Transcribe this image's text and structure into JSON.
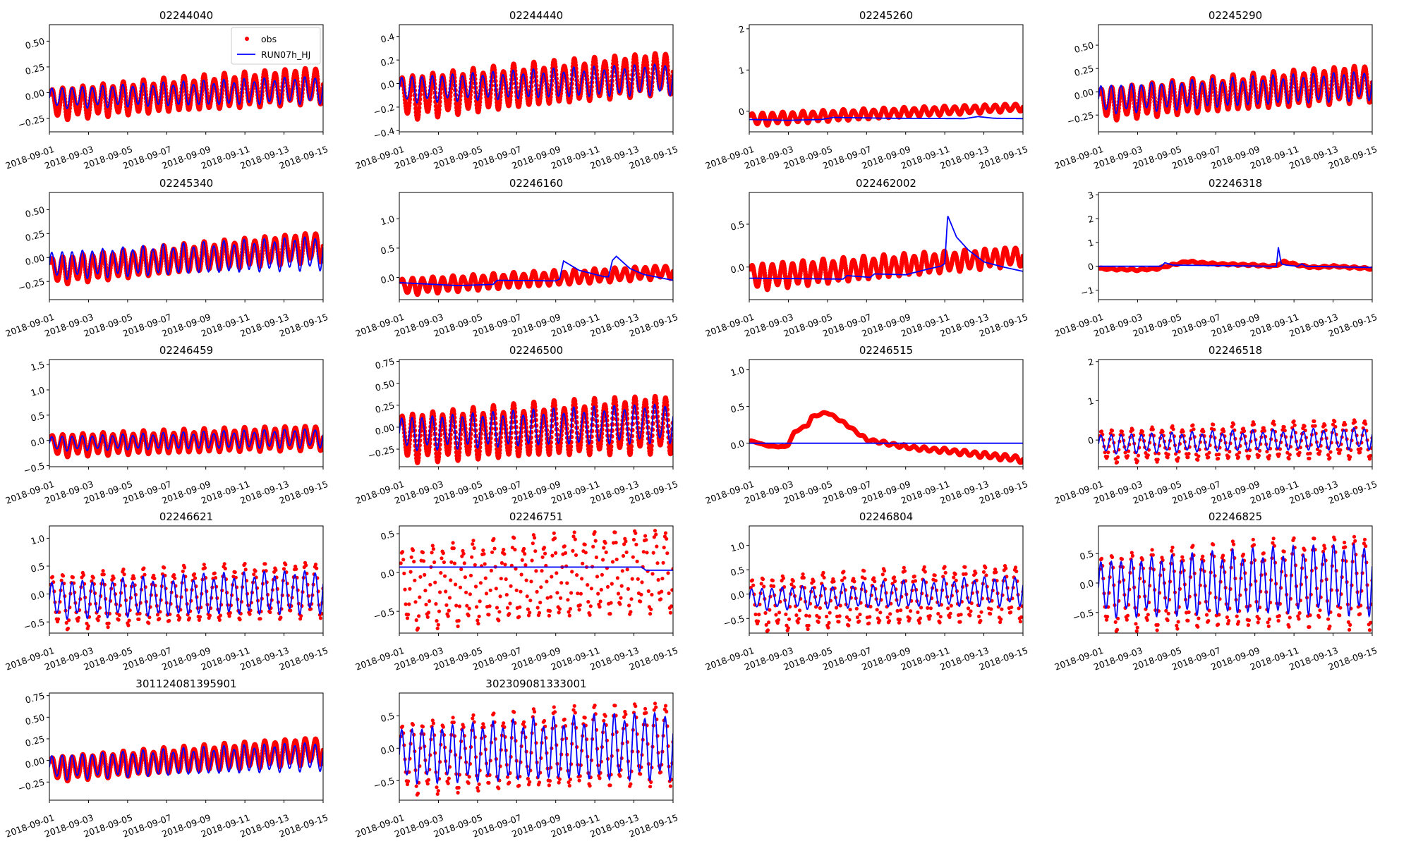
{
  "chart_data": {
    "type": "scatter+line",
    "layout": {
      "rows": 5,
      "cols": 4
    },
    "legend": {
      "placement": "top-right",
      "panel": 0,
      "entries": [
        {
          "name": "obs",
          "marker": "dot",
          "color": "#ff0000"
        },
        {
          "name": "RUN07h_HJ",
          "marker": "line",
          "color": "#0000ff"
        }
      ]
    },
    "xlim": [
      "2018-09-01",
      "2018-09-15"
    ],
    "xticks": [
      "2018-09-01",
      "2018-09-03",
      "2018-09-05",
      "2018-09-07",
      "2018-09-09",
      "2018-09-11",
      "2018-09-13",
      "2018-09-15"
    ],
    "series_description": "obs = red dots (observed water level), RUN07h_HJ = blue line (model), tidal oscillation ~2 cycles/day",
    "panels": [
      {
        "title": "02244040",
        "ylim": [
          -0.38,
          0.66
        ],
        "yticks": [
          -0.25,
          0,
          0.25,
          0.5
        ],
        "ytick_labels": [
          "−0.25",
          "0.00",
          "0.25",
          "0.50"
        ],
        "obs": {
          "start_mean": -0.11,
          "end_mean": 0.08,
          "start_amp": 0.14,
          "end_amp": 0.16
        },
        "model": {
          "start_mean": -0.05,
          "end_mean": 0.03,
          "start_amp": 0.09,
          "end_amp": 0.12
        }
      },
      {
        "title": "02244440",
        "ylim": [
          -0.41,
          0.5
        ],
        "yticks": [
          -0.4,
          -0.2,
          0,
          0.2,
          0.4
        ],
        "ytick_labels": [
          "−0.4",
          "−0.2",
          "0.0",
          "0.2",
          "0.4"
        ],
        "obs": {
          "start_mean": -0.12,
          "end_mean": 0.1,
          "start_amp": 0.17,
          "end_amp": 0.16
        },
        "model": {
          "start_mean": -0.05,
          "end_mean": 0.04,
          "start_amp": 0.1,
          "end_amp": 0.12
        }
      },
      {
        "title": "02245260",
        "ylim": [
          -0.5,
          2.1
        ],
        "yticks": [
          0,
          1,
          2
        ],
        "ytick_labels": [
          "0",
          "1",
          "2"
        ],
        "obs": {
          "start_mean": -0.2,
          "end_mean": 0.1,
          "start_amp": 0.14,
          "end_amp": 0.08
        },
        "model": {
          "start_mean": -0.2,
          "end_mean": -0.19,
          "start_amp": 0.0,
          "end_amp": 0.0,
          "profile": [
            [
              0,
              -0.2
            ],
            [
              2,
              -0.22
            ],
            [
              3.7,
              -0.2
            ],
            [
              4.3,
              -0.15
            ],
            [
              7,
              -0.17
            ],
            [
              11,
              -0.18
            ],
            [
              11.7,
              -0.13
            ],
            [
              12.5,
              -0.17
            ],
            [
              14,
              -0.18
            ]
          ]
        }
      },
      {
        "title": "02245290",
        "ylim": [
          -0.43,
          0.72
        ],
        "yticks": [
          -0.25,
          0,
          0.25,
          0.5
        ],
        "ytick_labels": [
          "−0.25",
          "0.00",
          "0.25",
          "0.50"
        ],
        "obs": {
          "start_mean": -0.13,
          "end_mean": 0.1,
          "start_amp": 0.16,
          "end_amp": 0.18
        },
        "model": {
          "start_mean": -0.08,
          "end_mean": 0.07,
          "start_amp": 0.14,
          "end_amp": 0.14
        }
      },
      {
        "title": "02245340",
        "ylim": [
          -0.44,
          0.68
        ],
        "yticks": [
          -0.25,
          0,
          0.25,
          0.5
        ],
        "ytick_labels": [
          "−0.25",
          "0.00",
          "0.25",
          "0.50"
        ],
        "obs": {
          "start_mean": -0.14,
          "end_mean": 0.12,
          "start_amp": 0.13,
          "end_amp": 0.14
        },
        "model": {
          "start_mean": -0.08,
          "end_mean": 0.05,
          "start_amp": 0.13,
          "end_amp": 0.16
        }
      },
      {
        "title": "02246160",
        "ylim": [
          -0.38,
          1.45
        ],
        "yticks": [
          0,
          0.5,
          1.0
        ],
        "ytick_labels": [
          "0.0",
          "0.5",
          "1.0"
        ],
        "obs": {
          "start_mean": -0.16,
          "end_mean": 0.1,
          "start_amp": 0.13,
          "end_amp": 0.1
        },
        "model": {
          "start_mean": -0.09,
          "end_mean": -0.05,
          "start_amp": 0.0,
          "end_amp": 0.0,
          "profile": [
            [
              0,
              -0.09
            ],
            [
              3,
              -0.14
            ],
            [
              4.8,
              -0.12
            ],
            [
              5,
              -0.05
            ],
            [
              8,
              -0.06
            ],
            [
              8.2,
              -0.03
            ],
            [
              8.4,
              0.28
            ],
            [
              9.2,
              0.12
            ],
            [
              10.5,
              0.01
            ],
            [
              10.7,
              0.01
            ],
            [
              10.9,
              0.29
            ],
            [
              11.1,
              0.36
            ],
            [
              11.8,
              0.15
            ],
            [
              12.5,
              0.05
            ],
            [
              14,
              -0.05
            ]
          ]
        }
      },
      {
        "title": "022462002",
        "ylim": [
          -0.38,
          0.87
        ],
        "yticks": [
          0,
          0.5
        ],
        "ytick_labels": [
          "0.0",
          "0.5"
        ],
        "obs": {
          "start_mean": -0.12,
          "end_mean": 0.13,
          "start_amp": 0.14,
          "end_amp": 0.1
        },
        "model": {
          "start_mean": -0.13,
          "end_mean": -0.05,
          "start_amp": 0.0,
          "end_amp": 0.0,
          "profile": [
            [
              0,
              -0.13
            ],
            [
              4.8,
              -0.14
            ],
            [
              5,
              -0.1
            ],
            [
              6.2,
              -0.12
            ],
            [
              6.4,
              -0.08
            ],
            [
              8,
              -0.09
            ],
            [
              9.2,
              -0.02
            ],
            [
              9.8,
              0.01
            ],
            [
              10,
              0.04
            ],
            [
              10.15,
              0.6
            ],
            [
              10.6,
              0.35
            ],
            [
              11.2,
              0.2
            ],
            [
              12,
              0.06
            ],
            [
              13,
              0.0
            ],
            [
              14,
              -0.05
            ]
          ]
        }
      },
      {
        "title": "02246318",
        "ylim": [
          -1.4,
          3.1
        ],
        "yticks": [
          -1,
          0,
          1,
          2,
          3
        ],
        "ytick_labels": [
          "−1",
          "0",
          "1",
          "2",
          "3"
        ],
        "obs": {
          "start_mean": -0.1,
          "end_mean": -0.1,
          "start_amp": 0.03,
          "end_amp": 0.03,
          "profile": [
            [
              0,
              -0.1
            ],
            [
              2,
              -0.15
            ],
            [
              3,
              -0.1
            ],
            [
              4.5,
              0.2
            ],
            [
              6,
              0.1
            ],
            [
              8,
              0.05
            ],
            [
              9,
              0.0
            ],
            [
              9.5,
              0.2
            ],
            [
              10.2,
              0.05
            ],
            [
              11,
              -0.05
            ],
            [
              12,
              0.0
            ],
            [
              14,
              -0.1
            ]
          ]
        },
        "model": {
          "start_mean": 0.0,
          "end_mean": -0.05,
          "start_amp": 0.0,
          "end_amp": 0.0,
          "profile": [
            [
              0,
              0
            ],
            [
              3.2,
              0
            ],
            [
              3.4,
              0.15
            ],
            [
              3.8,
              0.05
            ],
            [
              9.1,
              0.0
            ],
            [
              9.2,
              0.8
            ],
            [
              9.35,
              0.1
            ],
            [
              9.6,
              0.05
            ],
            [
              10.2,
              0.0
            ],
            [
              10.4,
              0.1
            ],
            [
              10.6,
              0.0
            ],
            [
              14,
              -0.05
            ]
          ]
        }
      },
      {
        "title": "02246459",
        "ylim": [
          -0.52,
          1.6
        ],
        "yticks": [
          -0.5,
          0,
          0.5,
          1.0,
          1.5
        ],
        "ytick_labels": [
          "−0.5",
          "0.0",
          "0.5",
          "1.0",
          "1.5"
        ],
        "obs": {
          "start_mean": -0.1,
          "end_mean": 0.06,
          "start_amp": 0.2,
          "end_amp": 0.22
        },
        "model": {
          "start_mean": -0.06,
          "end_mean": 0.05,
          "start_amp": 0.13,
          "end_amp": 0.17
        }
      },
      {
        "title": "02246500",
        "ylim": [
          -0.45,
          0.77
        ],
        "yticks": [
          -0.25,
          0,
          0.25,
          0.5,
          0.75
        ],
        "ytick_labels": [
          "−0.25",
          "0.00",
          "0.25",
          "0.50",
          "0.75"
        ],
        "obs": {
          "start_mean": -0.12,
          "end_mean": 0.05,
          "start_amp": 0.25,
          "end_amp": 0.3
        },
        "model": {
          "start_mean": -0.07,
          "end_mean": 0.05,
          "start_amp": 0.17,
          "end_amp": 0.2
        }
      },
      {
        "title": "02246515",
        "ylim": [
          -0.32,
          1.14
        ],
        "yticks": [
          0,
          0.5,
          1.0
        ],
        "ytick_labels": [
          "0.0",
          "0.5",
          "1.0"
        ],
        "obs": {
          "start_mean": 0.04,
          "end_mean": -0.2,
          "start_amp": 0.0,
          "end_amp": 0.04,
          "profile": [
            [
              0,
              0.04
            ],
            [
              1,
              -0.04
            ],
            [
              1.8,
              -0.05
            ],
            [
              2,
              -0.02
            ],
            [
              2.3,
              0.15
            ],
            [
              3,
              0.25
            ],
            [
              3.2,
              0.36
            ],
            [
              4,
              0.42
            ],
            [
              5,
              0.25
            ],
            [
              6,
              0.05
            ],
            [
              7,
              0.0
            ],
            [
              8,
              -0.05
            ],
            [
              9,
              -0.08
            ],
            [
              10,
              -0.1
            ],
            [
              11,
              -0.13
            ],
            [
              12,
              -0.16
            ],
            [
              13,
              -0.19
            ],
            [
              14,
              -0.22
            ]
          ]
        },
        "model": {
          "start_mean": 0.0,
          "end_mean": 0.0,
          "start_amp": 0.0,
          "end_amp": 0.0
        }
      },
      {
        "title": "02246518",
        "ylim": [
          -0.68,
          2.05
        ],
        "yticks": [
          0,
          1,
          2
        ],
        "ytick_labels": [
          "0",
          "1",
          "2"
        ],
        "obs": {
          "start_mean": -0.15,
          "end_mean": 0.05,
          "start_amp": 0.38,
          "end_amp": 0.45
        },
        "model": {
          "start_mean": -0.1,
          "end_mean": 0.05,
          "start_amp": 0.22,
          "end_amp": 0.25
        }
      },
      {
        "title": "02246621",
        "ylim": [
          -0.7,
          1.22
        ],
        "yticks": [
          -0.5,
          0,
          0.5,
          1.0
        ],
        "ytick_labels": [
          "−0.5",
          "0.0",
          "0.5",
          "1.0"
        ],
        "obs": {
          "start_mean": -0.13,
          "end_mean": 0.1,
          "start_amp": 0.45,
          "end_amp": 0.45
        },
        "model": {
          "start_mean": -0.1,
          "end_mean": 0.05,
          "start_amp": 0.3,
          "end_amp": 0.35
        }
      },
      {
        "title": "02246751",
        "ylim": [
          -0.78,
          0.6
        ],
        "yticks": [
          -0.5,
          0,
          0.5
        ],
        "ytick_labels": [
          "−0.5",
          "0.0",
          "0.5"
        ],
        "obs": {
          "start_mean": -0.2,
          "end_mean": 0.05,
          "start_amp": 0.48,
          "end_amp": 0.48
        },
        "model": {
          "start_mean": 0.07,
          "end_mean": 0.03,
          "start_amp": 0.0,
          "end_amp": 0.0,
          "profile": [
            [
              0,
              0.07
            ],
            [
              12.4,
              0.07
            ],
            [
              12.6,
              0.03
            ],
            [
              14,
              0.03
            ]
          ]
        }
      },
      {
        "title": "02246804",
        "ylim": [
          -0.8,
          1.4
        ],
        "yticks": [
          -0.5,
          0,
          0.5,
          1.0
        ],
        "ytick_labels": [
          "−0.5",
          "0.0",
          "0.5",
          "1.0"
        ],
        "obs": {
          "start_mean": -0.2,
          "end_mean": 0.05,
          "start_amp": 0.5,
          "end_amp": 0.52
        },
        "model": {
          "start_mean": -0.1,
          "end_mean": 0.08,
          "start_amp": 0.2,
          "end_amp": 0.28
        }
      },
      {
        "title": "02246825",
        "ylim": [
          -0.85,
          0.97
        ],
        "yticks": [
          -0.5,
          0,
          0.5
        ],
        "ytick_labels": [
          "−0.5",
          "0.0",
          "0.5"
        ],
        "obs": {
          "start_mean": -0.15,
          "end_mean": 0.05,
          "start_amp": 0.58,
          "end_amp": 0.72
        },
        "model": {
          "start_mean": -0.08,
          "end_mean": 0.08,
          "start_amp": 0.43,
          "end_amp": 0.55
        }
      },
      {
        "title": "301124081395901",
        "ylim": [
          -0.46,
          0.78
        ],
        "yticks": [
          -0.25,
          0,
          0.25,
          0.5,
          0.75
        ],
        "ytick_labels": [
          "−0.25",
          "0.00",
          "0.25",
          "0.50",
          "0.75"
        ],
        "obs": {
          "start_mean": -0.1,
          "end_mean": 0.12,
          "start_amp": 0.13,
          "end_amp": 0.14
        },
        "model": {
          "start_mean": -0.08,
          "end_mean": 0.05,
          "start_amp": 0.13,
          "end_amp": 0.15
        }
      },
      {
        "title": "302309081333001",
        "ylim": [
          -0.8,
          0.85
        ],
        "yticks": [
          -0.5,
          0,
          0.5
        ],
        "ytick_labels": [
          "−0.5",
          "0.0",
          "0.5"
        ],
        "obs": {
          "start_mean": -0.15,
          "end_mean": 0.1,
          "start_amp": 0.5,
          "end_amp": 0.58
        },
        "model": {
          "start_mean": -0.1,
          "end_mean": 0.05,
          "start_amp": 0.38,
          "end_amp": 0.47
        }
      }
    ]
  }
}
